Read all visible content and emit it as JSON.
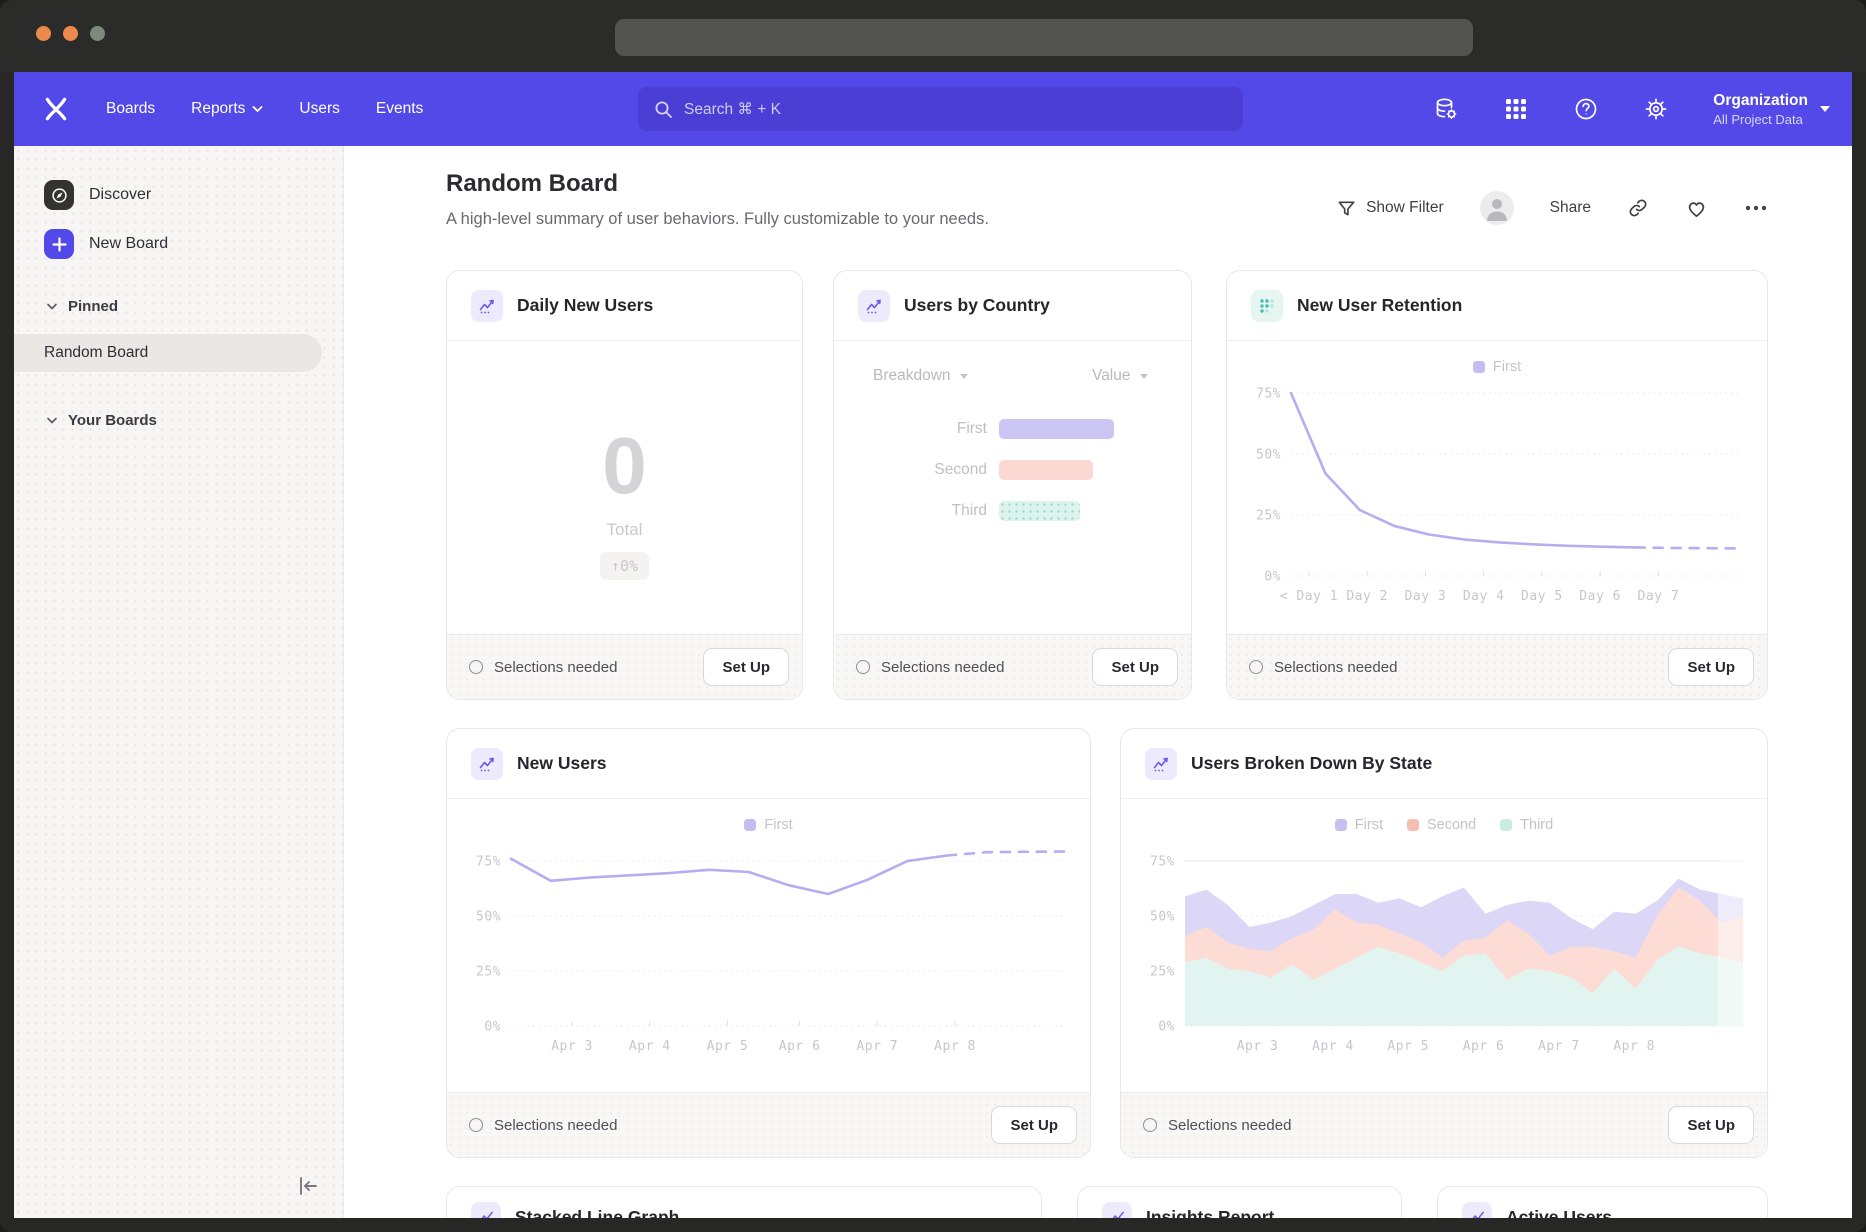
{
  "window": {
    "traffic_lights": [
      {
        "name": "close",
        "color": "#ec8a4d"
      },
      {
        "name": "minimize",
        "color": "#ec8a4d"
      },
      {
        "name": "zoom",
        "color": "#7e887e"
      }
    ]
  },
  "nav": {
    "menu": [
      "Boards",
      "Reports",
      "Users",
      "Events"
    ],
    "search_placeholder": "Search ⌘ + K",
    "org_name": "Organization",
    "org_project": "All Project Data"
  },
  "sidebar": {
    "discover": "Discover",
    "new_board": "New Board",
    "pinned_header": "Pinned",
    "pinned_selected": "Random Board",
    "your_boards_header": "Your Boards"
  },
  "board": {
    "title": "Random Board",
    "subtitle": "A high-level summary of user behaviors. Fully customizable to your needs.",
    "show_filter": "Show Filter",
    "share": "Share",
    "more": "•••"
  },
  "cards": {
    "footer_status": "Selections needed",
    "setup": "Set Up",
    "daily_new_users": {
      "title": "Daily New Users",
      "value": "0",
      "value_label": "Total",
      "delta": "↑0%"
    },
    "users_by_country": {
      "title": "Users by Country",
      "breakdown_label": "Breakdown",
      "value_label": "Value"
    },
    "retention": {
      "title": "New User Retention"
    },
    "new_users": {
      "title": "New Users"
    },
    "by_state": {
      "title": "Users Broken Down By State"
    },
    "stubs": [
      "Stacked Line Graph",
      "Insights Report",
      "Active Users"
    ]
  },
  "chart_data": [
    {
      "id": "users_by_country",
      "type": "bar",
      "orientation": "horizontal",
      "title": "Users by Country",
      "categories": [
        "First",
        "Second",
        "Third"
      ],
      "values": [
        100,
        82,
        70
      ],
      "colors": [
        "#cbc5f3",
        "#fbd9d2",
        "#dcf4ed"
      ],
      "note": "relative bar lengths; no numeric axis shown"
    },
    {
      "id": "retention",
      "type": "line",
      "title": "New User Retention",
      "legend": [
        "First"
      ],
      "legend_colors": [
        "#c3bdf2"
      ],
      "color": "#b4adf0",
      "yticks": [
        75,
        50,
        25,
        0
      ],
      "ylim": [
        0,
        80
      ],
      "xlabels": [
        "< Day 1",
        "Day 2",
        "Day 3",
        "Day 4",
        "Day 5",
        "Day 6",
        "Day 7"
      ],
      "xlabel_pos": [
        0.04,
        0.17,
        0.3,
        0.43,
        0.56,
        0.69,
        0.82
      ],
      "points": [
        75,
        42,
        27,
        20.5,
        17,
        15,
        13.8,
        13,
        12.4,
        12,
        11.7,
        11.5,
        11.4,
        11.3
      ],
      "dash_from": 10
    },
    {
      "id": "new_users",
      "type": "line",
      "title": "New Users",
      "legend": [
        "First"
      ],
      "legend_colors": [
        "#c3bdf2"
      ],
      "color": "#b4adf0",
      "yticks": [
        75,
        50,
        25,
        0
      ],
      "ylim": [
        0,
        85
      ],
      "xlabels": [
        "Apr 3",
        "Apr 4",
        "Apr 5",
        "Apr 6",
        "Apr 7",
        "Apr 8"
      ],
      "xlabel_pos": [
        0.11,
        0.25,
        0.39,
        0.52,
        0.66,
        0.8
      ],
      "points": [
        76,
        66,
        67.5,
        68.5,
        69.5,
        71,
        70,
        64,
        60,
        66.5,
        75,
        77.5,
        79,
        79.2,
        79.3
      ],
      "dash_from": 11
    },
    {
      "id": "by_state",
      "type": "area",
      "stacked": true,
      "title": "Users Broken Down By State",
      "legend": [
        "First",
        "Second",
        "Third"
      ],
      "legend_colors": [
        "#c6c0f2",
        "#f6beb2",
        "#c9ece2"
      ],
      "band_colors": [
        "#ddd7f7",
        "#fcdcd5",
        "#e2f4ef"
      ],
      "yticks": [
        75,
        50,
        25,
        0
      ],
      "ylim": [
        0,
        85
      ],
      "xlabels": [
        "Apr 3",
        "Apr 4",
        "Apr 5",
        "Apr 6",
        "Apr 7",
        "Apr 8"
      ],
      "xlabel_pos": [
        0.13,
        0.265,
        0.4,
        0.535,
        0.67,
        0.805
      ],
      "cumulative_tops": {
        "first": [
          59,
          62,
          55,
          45,
          47,
          50,
          55,
          60,
          60,
          56,
          58,
          54,
          59,
          63,
          51,
          55,
          57,
          56,
          49,
          44,
          52,
          51,
          57,
          67,
          62,
          60,
          58
        ],
        "second": [
          41,
          45,
          38,
          35,
          34,
          40,
          44,
          53,
          47,
          46,
          42,
          38,
          31,
          39,
          40,
          48,
          42,
          32,
          36,
          36,
          34,
          31,
          50,
          63,
          57,
          47,
          50
        ],
        "third": [
          29,
          31,
          26,
          25,
          22,
          28,
          21,
          26,
          31,
          36,
          33,
          29,
          25,
          32,
          33,
          21,
          26,
          25,
          22,
          15,
          26,
          17,
          30,
          36,
          33,
          31,
          29
        ]
      },
      "forecast_from_frac": 0.955
    }
  ]
}
